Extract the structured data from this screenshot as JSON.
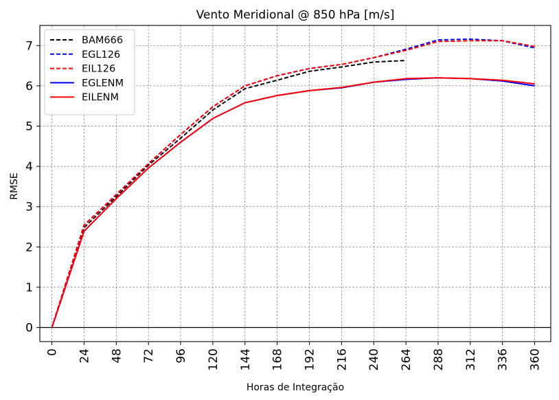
{
  "chart_data": {
    "type": "line",
    "title": "Vento Meridional @ 850 hPa [m/s]",
    "xlabel": "Horas de Integração",
    "ylabel": "RMSE",
    "xlim": [
      -9,
      372
    ],
    "ylim": [
      -0.35,
      7.5
    ],
    "grid": true,
    "legend_position": "top-left",
    "x_ticks": [
      0,
      24,
      48,
      72,
      96,
      120,
      144,
      168,
      192,
      216,
      240,
      264,
      288,
      312,
      336,
      360
    ],
    "y_ticks": [
      0,
      1,
      2,
      3,
      4,
      5,
      6,
      7
    ],
    "x_tick_labels": [
      "0",
      "24",
      "48",
      "72",
      "96",
      "120",
      "144",
      "168",
      "192",
      "216",
      "240",
      "264",
      "288",
      "312",
      "336",
      "360"
    ],
    "y_tick_labels": [
      "0",
      "1",
      "2",
      "3",
      "4",
      "5",
      "6",
      "7"
    ],
    "series": [
      {
        "name": "BAM666",
        "color": "#000000",
        "dash": true,
        "x": [
          0,
          24,
          48,
          72,
          96,
          120,
          144,
          168,
          192,
          216,
          240,
          264
        ],
        "values": [
          0,
          2.48,
          3.25,
          4.03,
          4.7,
          5.4,
          5.93,
          6.14,
          6.36,
          6.47,
          6.59,
          6.63
        ]
      },
      {
        "name": "EGL126",
        "color": "#0000ff",
        "dash": true,
        "x": [
          0,
          24,
          48,
          72,
          96,
          120,
          144,
          168,
          192,
          216,
          240,
          264,
          288,
          312,
          336,
          360
        ],
        "values": [
          0,
          2.54,
          3.3,
          4.07,
          4.79,
          5.48,
          6.0,
          6.25,
          6.43,
          6.53,
          6.7,
          6.91,
          7.14,
          7.16,
          7.12,
          6.94
        ]
      },
      {
        "name": "EIL126",
        "color": "#ff0000",
        "dash": true,
        "x": [
          0,
          24,
          48,
          72,
          96,
          120,
          144,
          168,
          192,
          216,
          240,
          264,
          288,
          312,
          336,
          360
        ],
        "values": [
          0,
          2.54,
          3.3,
          4.07,
          4.79,
          5.48,
          6.0,
          6.25,
          6.43,
          6.53,
          6.7,
          6.88,
          7.1,
          7.12,
          7.12,
          6.98
        ]
      },
      {
        "name": "EGLENM",
        "color": "#0000ff",
        "dash": false,
        "x": [
          0,
          24,
          48,
          72,
          96,
          120,
          144,
          168,
          192,
          216,
          240,
          264,
          288,
          312,
          336,
          360
        ],
        "values": [
          0,
          2.39,
          3.2,
          3.96,
          4.6,
          5.19,
          5.58,
          5.76,
          5.88,
          5.95,
          6.09,
          6.16,
          6.2,
          6.18,
          6.12,
          6.0
        ]
      },
      {
        "name": "EILENM",
        "color": "#ff0000",
        "dash": false,
        "x": [
          0,
          24,
          48,
          72,
          96,
          120,
          144,
          168,
          192,
          216,
          240,
          264,
          288,
          312,
          336,
          360
        ],
        "values": [
          0,
          2.39,
          3.2,
          3.96,
          4.6,
          5.19,
          5.58,
          5.76,
          5.88,
          5.96,
          6.09,
          6.18,
          6.2,
          6.18,
          6.14,
          6.05
        ]
      }
    ]
  }
}
